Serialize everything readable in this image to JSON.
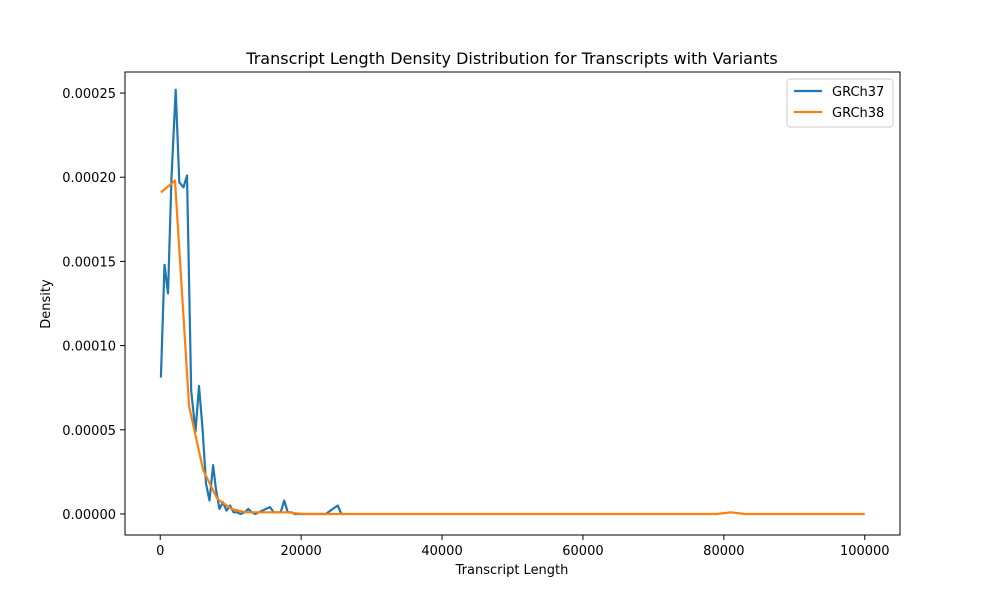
{
  "chart_data": {
    "type": "line",
    "title": "Transcript Length Density Distribution for Transcripts with Variants",
    "xlabel": "Transcript Length",
    "ylabel": "Density",
    "xlim": [
      -5000,
      105000
    ],
    "ylim": [
      -1.25e-05,
      0.0002625
    ],
    "xticks": [
      0,
      20000,
      40000,
      60000,
      80000,
      100000
    ],
    "xtick_labels": [
      "0",
      "20000",
      "40000",
      "60000",
      "80000",
      "100000"
    ],
    "yticks": [
      0,
      5e-05,
      0.0001,
      0.00015,
      0.0002,
      0.00025
    ],
    "ytick_labels": [
      "0.00000",
      "0.00005",
      "0.00010",
      "0.00015",
      "0.00020",
      "0.00025"
    ],
    "grid": false,
    "legend": "top-right",
    "colors": {
      "GRCh37": "#1f77b4",
      "GRCh38": "#ff7f0e"
    },
    "series": [
      {
        "name": "GRCh37",
        "x": [
          100,
          600,
          1100,
          1600,
          2200,
          2700,
          3300,
          3800,
          4400,
          5000,
          5500,
          6000,
          6500,
          7000,
          7500,
          7900,
          8400,
          8900,
          9400,
          9900,
          10400,
          10900,
          11400,
          12000,
          12500,
          13000,
          13500,
          14000,
          14500,
          15000,
          15600,
          16100,
          16600,
          17100,
          17600,
          18100,
          18600,
          19100,
          20000,
          22000,
          23500,
          24500,
          25200,
          25700,
          26200
        ],
        "y": [
          8.1e-05,
          0.000148,
          0.000131,
          0.0002,
          0.000252,
          0.000197,
          0.000194,
          0.000201,
          7.3e-05,
          4.9e-05,
          7.6e-05,
          5.1e-05,
          1.8e-05,
          8e-06,
          2.9e-05,
          1.5e-05,
          3e-06,
          7e-06,
          2e-06,
          5e-06,
          1e-06,
          1e-06,
          0.0,
          1e-06,
          3e-06,
          1e-06,
          0.0,
          1e-06,
          2e-06,
          3e-06,
          4e-06,
          1e-06,
          1e-06,
          1e-06,
          8e-06,
          1e-06,
          1e-06,
          0.0,
          0.0,
          0.0,
          0.0,
          3e-06,
          5e-06,
          0.0,
          0.0
        ]
      },
      {
        "name": "GRCh38",
        "x": [
          100,
          2100,
          4100,
          6100,
          8100,
          10100,
          12100,
          14100,
          16100,
          18100,
          20100,
          22100,
          24100,
          26100,
          30000,
          35000,
          40000,
          44000,
          50000,
          55000,
          60000,
          62000,
          65000,
          70000,
          75000,
          79000,
          81000,
          83000,
          90000,
          95000,
          100000
        ],
        "y": [
          0.000191,
          0.000198,
          6.4e-05,
          2.6e-05,
          9e-06,
          3e-06,
          1e-06,
          1e-06,
          1e-06,
          1e-06,
          0.0,
          0.0,
          0.0,
          0.0,
          0.0,
          0.0,
          0.0,
          0.0,
          0.0,
          0.0,
          0.0,
          0.0,
          0.0,
          0.0,
          0.0,
          0.0,
          1e-06,
          0.0,
          0.0,
          0.0,
          0.0
        ]
      }
    ]
  }
}
